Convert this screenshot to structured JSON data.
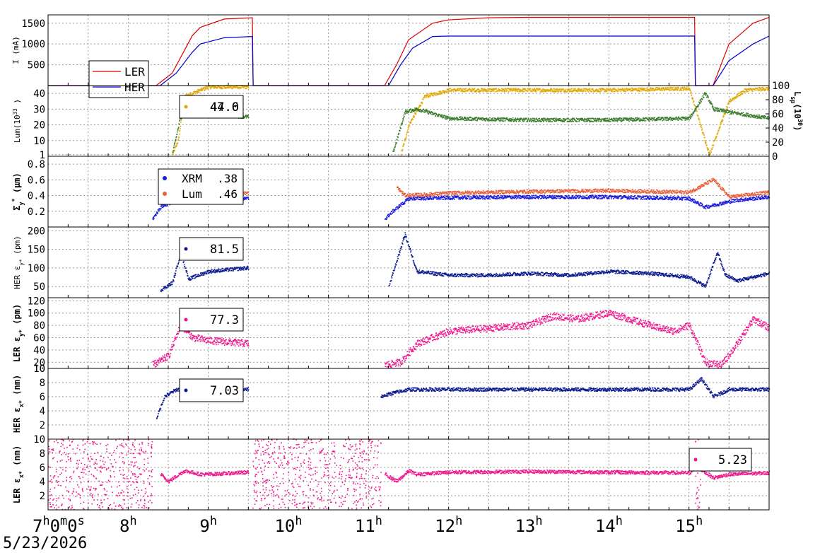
{
  "chart_data": [
    {
      "type": "line",
      "ylabel": "I (mA)",
      "ylim": [
        0,
        1700
      ],
      "yticks": [
        500,
        1000,
        1500
      ],
      "legend_placement": "left",
      "grid": true,
      "series": [
        {
          "name": "LER",
          "color": "#dd0000",
          "x": [
            7.0,
            8.35,
            8.55,
            8.8,
            8.9,
            9.2,
            9.55,
            9.56,
            11.2,
            11.35,
            11.5,
            11.8,
            12.0,
            12.5,
            13.0,
            15.07,
            15.08,
            15.3,
            15.5,
            15.8,
            16.0
          ],
          "values": [
            0,
            0,
            300,
            1200,
            1400,
            1600,
            1630,
            0,
            0,
            500,
            1100,
            1500,
            1580,
            1630,
            1640,
            1640,
            0,
            0,
            1000,
            1500,
            1640
          ]
        },
        {
          "name": "HER",
          "color": "#0000cc",
          "x": [
            7.0,
            8.4,
            8.6,
            8.8,
            8.9,
            9.2,
            9.55,
            9.56,
            11.25,
            11.4,
            11.55,
            11.8,
            12.0,
            13.0,
            15.07,
            15.08,
            15.3,
            15.5,
            15.8,
            16.0
          ],
          "values": [
            0,
            0,
            300,
            800,
            1000,
            1150,
            1180,
            0,
            0,
            500,
            900,
            1180,
            1190,
            1190,
            1190,
            0,
            0,
            600,
            1000,
            1190
          ]
        }
      ]
    },
    {
      "type": "scatter",
      "ylabel": "Lum(10",
      "ylabel_sup": "33",
      "ylabel_end": ")",
      "ylim": [
        0,
        45
      ],
      "yticks": [
        1,
        10,
        20,
        30,
        40
      ],
      "y2label": "L",
      "y2label_sub": "sp",
      "y2label_mid": "(10",
      "y2label_sup": "30",
      "y2label_end": ")",
      "y2lim": [
        0,
        100
      ],
      "y2ticks": [
        0,
        20,
        40,
        60,
        80,
        100
      ],
      "annotation": "47.0",
      "annotation2": "44.6",
      "series": [
        {
          "name": "Luminosity",
          "color": "#e0a800",
          "x": [
            8.55,
            8.62,
            8.7,
            9.0,
            9.5,
            11.4,
            11.5,
            11.7,
            12.0,
            13.0,
            14.0,
            15.0,
            15.25,
            15.35,
            15.5,
            15.7,
            16.0
          ],
          "values": [
            1,
            10,
            38,
            44,
            44,
            1,
            20,
            38,
            42,
            42,
            42,
            43,
            1,
            15,
            35,
            42,
            43
          ]
        },
        {
          "name": "Specific luminosity",
          "color": "#3a7a2a",
          "x": [
            8.55,
            8.65,
            8.75,
            9.0,
            9.5,
            11.3,
            11.45,
            11.6,
            12.0,
            13.0,
            14.0,
            15.0,
            15.2,
            15.3,
            15.5,
            16.0
          ],
          "values": [
            2,
            25,
            28,
            26,
            25,
            2,
            28,
            30,
            24,
            23,
            23,
            24,
            40,
            30,
            28,
            24
          ]
        }
      ]
    },
    {
      "type": "scatter",
      "ylabel": "Σ",
      "ylabel_sub": "y",
      "ylabel_sup": "*",
      "ylabel_end": "(μm)",
      "ylim": [
        0,
        0.9
      ],
      "yticks": [
        0.2,
        0.4,
        0.6,
        0.8
      ],
      "series": [
        {
          "name": "XRM",
          "color": "#1a1adc",
          "label": ".38",
          "x": [
            8.3,
            8.4,
            8.5,
            8.7,
            9.0,
            9.5,
            11.2,
            11.3,
            11.5,
            12.0,
            13.0,
            14.0,
            15.0,
            15.2,
            15.4,
            15.6,
            16.0
          ],
          "values": [
            0.1,
            0.25,
            0.3,
            0.36,
            0.35,
            0.36,
            0.1,
            0.2,
            0.36,
            0.37,
            0.38,
            0.38,
            0.36,
            0.25,
            0.3,
            0.34,
            0.38
          ]
        },
        {
          "name": "Lum",
          "color": "#e8603c",
          "label": ".46",
          "x": [
            8.6,
            8.7,
            9.0,
            9.5,
            11.35,
            11.45,
            11.7,
            12.0,
            13.0,
            14.0,
            15.0,
            15.3,
            15.5,
            16.0
          ],
          "values": [
            0.6,
            0.45,
            0.43,
            0.43,
            0.5,
            0.4,
            0.41,
            0.43,
            0.45,
            0.46,
            0.44,
            0.6,
            0.38,
            0.44
          ]
        }
      ]
    },
    {
      "type": "scatter",
      "ylabel": "HER ε",
      "ylabel_sub": "y*",
      "ylabel_end": "(pm)",
      "ylim": [
        20,
        210
      ],
      "yticks": [
        50,
        100,
        150,
        200
      ],
      "annotation": "81.5",
      "series": [
        {
          "name": "HER emittance y",
          "color": "#0a1a8c",
          "x": [
            8.4,
            8.55,
            8.65,
            8.75,
            9.0,
            9.5,
            11.25,
            11.35,
            11.45,
            11.6,
            12.0,
            12.5,
            13.0,
            13.5,
            14.0,
            14.5,
            15.0,
            15.2,
            15.35,
            15.45,
            15.6,
            16.0
          ],
          "values": [
            40,
            60,
            140,
            70,
            90,
            100,
            50,
            120,
            190,
            90,
            80,
            80,
            85,
            80,
            90,
            85,
            75,
            50,
            140,
            80,
            65,
            85
          ]
        }
      ]
    },
    {
      "type": "scatter",
      "ylabel": "LER ε",
      "ylabel_sub": "y*",
      "ylabel_end": "(pm)",
      "ylim": [
        10,
        125
      ],
      "yticks": [
        10,
        20,
        40,
        60,
        80,
        100,
        120
      ],
      "annotation": "77.3",
      "series": [
        {
          "name": "LER emittance y",
          "color": "#f0148c",
          "x": [
            8.3,
            8.5,
            8.65,
            8.8,
            9.0,
            9.5,
            11.2,
            11.4,
            11.6,
            12.0,
            12.5,
            13.0,
            13.3,
            13.6,
            14.0,
            14.5,
            14.8,
            15.0,
            15.2,
            15.4,
            15.6,
            15.8,
            16.0
          ],
          "values": [
            15,
            30,
            80,
            60,
            55,
            50,
            15,
            20,
            50,
            70,
            75,
            80,
            95,
            90,
            100,
            80,
            70,
            80,
            20,
            15,
            50,
            90,
            75
          ]
        }
      ]
    },
    {
      "type": "scatter",
      "ylabel": "HER ε",
      "ylabel_sub": "x*",
      "ylabel_end": "(nm)",
      "ylim": [
        0,
        10
      ],
      "yticks": [
        2,
        4,
        6,
        8,
        10
      ],
      "annotation": "7.03",
      "series": [
        {
          "name": "HER emittance x",
          "color": "#0a1a8c",
          "x": [
            8.35,
            8.45,
            8.6,
            9.0,
            9.5,
            11.15,
            11.3,
            11.5,
            12.0,
            13.0,
            14.0,
            15.0,
            15.15,
            15.3,
            15.5,
            16.0
          ],
          "values": [
            3,
            6,
            7,
            7,
            7,
            6,
            6.5,
            7,
            7,
            7,
            7,
            7,
            8.5,
            6,
            7,
            7
          ]
        }
      ]
    },
    {
      "type": "scatter",
      "ylabel": "LER ε",
      "ylabel_sub": "x*",
      "ylabel_end": "(nm)",
      "ylim": [
        0,
        10
      ],
      "yticks": [
        2,
        4,
        6,
        8,
        10
      ],
      "annotation": "5.23",
      "series": [
        {
          "name": "LER emittance x",
          "color": "#f0148c",
          "x": [
            8.4,
            8.5,
            8.7,
            8.9,
            9.0,
            9.5,
            11.2,
            11.35,
            11.5,
            11.6,
            12.0,
            13.0,
            14.0,
            15.0,
            15.1,
            15.3,
            15.5,
            16.0
          ],
          "values": [
            5,
            4,
            5.5,
            5,
            5,
            5.3,
            5,
            4,
            5.5,
            5,
            5.3,
            5.4,
            5.3,
            5.2,
            6,
            4.5,
            5,
            5.2
          ]
        }
      ]
    }
  ],
  "x_axis": {
    "range": [
      7,
      16
    ],
    "ticks": [
      {
        "v": 7,
        "label": "7",
        "sup": "h",
        "label2": "0",
        "sup2": "m",
        "label3": "0",
        "sup3": "s"
      },
      {
        "v": 8,
        "label": "8",
        "sup": "h"
      },
      {
        "v": 9,
        "label": "9",
        "sup": "h"
      },
      {
        "v": 10,
        "label": "10",
        "sup": "h"
      },
      {
        "v": 11,
        "label": "11",
        "sup": "h"
      },
      {
        "v": 12,
        "label": "12",
        "sup": "h"
      },
      {
        "v": 13,
        "label": "13",
        "sup": "h"
      },
      {
        "v": 14,
        "label": "14",
        "sup": "h"
      },
      {
        "v": 15,
        "label": "15",
        "sup": "h"
      }
    ],
    "date": "5/23/2026"
  }
}
